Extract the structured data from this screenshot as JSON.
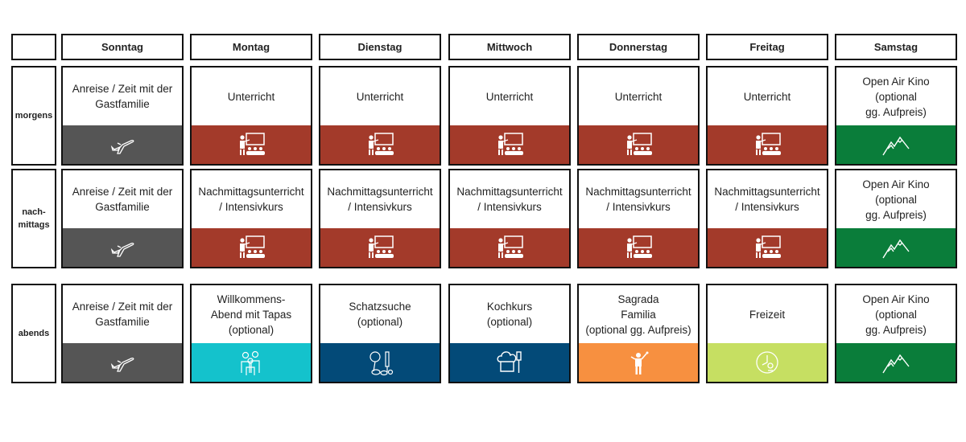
{
  "days": [
    "Sonntag",
    "Montag",
    "Dienstag",
    "Mittwoch",
    "Donnerstag",
    "Freitag",
    "Samstag"
  ],
  "rows": [
    {
      "label": "morgens",
      "cells": [
        {
          "text": "Anreise / Zeit mit der\nGastfamilie",
          "icon": "airplane-icon",
          "color": "#555555"
        },
        {
          "text": "Unterricht",
          "icon": "classroom-icon",
          "color": "#a33a2a"
        },
        {
          "text": "Unterricht",
          "icon": "classroom-icon",
          "color": "#a33a2a"
        },
        {
          "text": "Unterricht",
          "icon": "classroom-icon",
          "color": "#a33a2a"
        },
        {
          "text": "Unterricht",
          "icon": "classroom-icon",
          "color": "#a33a2a"
        },
        {
          "text": "Unterricht",
          "icon": "classroom-icon",
          "color": "#a33a2a"
        },
        {
          "text": "Open Air Kino\n(optional\ngg. Aufpreis)",
          "icon": "mountain-icon",
          "color": "#0a7d3a"
        }
      ]
    },
    {
      "label": "nach-\nmittags",
      "cells": [
        {
          "text": "Anreise / Zeit mit der\nGastfamilie",
          "icon": "airplane-icon",
          "color": "#555555"
        },
        {
          "text": "Nachmittagsunterricht\n/ Intensivkurs",
          "icon": "classroom-icon",
          "color": "#a33a2a"
        },
        {
          "text": "Nachmittagsunterricht\n/ Intensivkurs",
          "icon": "classroom-icon",
          "color": "#a33a2a"
        },
        {
          "text": "Nachmittagsunterricht\n/ Intensivkurs",
          "icon": "classroom-icon",
          "color": "#a33a2a"
        },
        {
          "text": "Nachmittagsunterricht\n/ Intensivkurs",
          "icon": "classroom-icon",
          "color": "#a33a2a"
        },
        {
          "text": "Nachmittagsunterricht\n/ Intensivkurs",
          "icon": "classroom-icon",
          "color": "#a33a2a"
        },
        {
          "text": "Open Air Kino\n(optional\ngg. Aufpreis)",
          "icon": "mountain-icon",
          "color": "#0a7d3a"
        }
      ]
    },
    {
      "label": "abends",
      "cells": [
        {
          "text": "Anreise / Zeit mit der\nGastfamilie",
          "icon": "airplane-icon",
          "color": "#555555"
        },
        {
          "text": "Willkommens-\nAbend mit Tapas\n(optional)",
          "icon": "group-icon",
          "color": "#14c2cc"
        },
        {
          "text": "Schatzsuche\n(optional)",
          "icon": "treasure-tools-icon",
          "color": "#034a78"
        },
        {
          "text": "Kochkurs\n(optional)",
          "icon": "chef-hat-icon",
          "color": "#034a78"
        },
        {
          "text": "Sagrada\nFamilia\n(optional gg. Aufpreis)",
          "icon": "guide-person-icon",
          "color": "#f79040"
        },
        {
          "text": "Freizeit",
          "icon": "leisure-clock-icon",
          "color": "#c6df62"
        },
        {
          "text": "Open Air Kino\n(optional\ngg. Aufpreis)",
          "icon": "mountain-icon",
          "color": "#0a7d3a"
        }
      ]
    }
  ]
}
